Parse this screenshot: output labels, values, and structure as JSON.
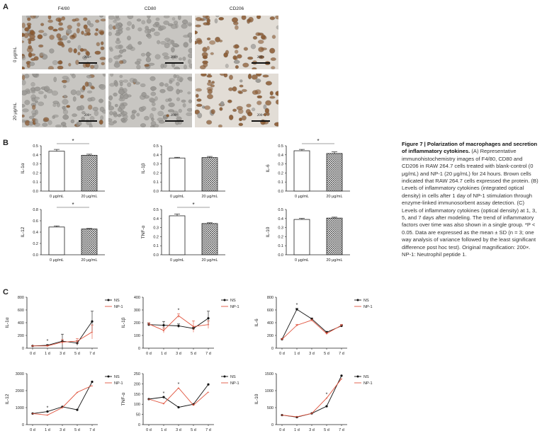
{
  "panels": {
    "a": "A",
    "b": "B",
    "c": "C"
  },
  "panel_a": {
    "columns": [
      "F4/80",
      "CD80",
      "CD206"
    ],
    "rows": [
      "0 μg/mL",
      "20 μg/mL"
    ],
    "scale_text": "200×",
    "colors": {
      "bg_gray": "#c8c6c2",
      "cell_gray": "#9a9894",
      "stain_brown": "#8a5a32"
    }
  },
  "caption": {
    "title": "Figure 7 | Polarization of macrophages and secretion of inflammatory cytokines.",
    "body": "(A) Representative immunohistochemistry images of F4/80, CD80 and CD206 in RAW 264.7 cells treated with blank-control (0 μg/mL) and NP-1 (20 μg/mL) for 24 hours. Brown cells indicated that RAW 264.7 cells expressed the protein. (B) Levels of inflammatory cytokines (integrated optical density) in cells after 1 day of NP-1 stimulation through enzyme-linked immunosorbent assay detection. (C) Levels of inflammatory cytokines (optical density) at 1, 3, 5, and 7 days after modeling. The trend of inflammatory factors over time was also shown in a single group. *P < 0.05. Data are expressed as the mean ± SD (n = 3; one way analysis of variance followed by the least significant difference post hoc test). Original magnification: 200×. NP-1: Neutrophil peptide 1."
  },
  "chart_data": [
    {
      "panel": "B",
      "type": "bar",
      "ylabel": "IL-1α",
      "categories": [
        "0 μg/mL",
        "20 μg/mL"
      ],
      "values": [
        0.44,
        0.395
      ],
      "errors": [
        0.02,
        0.012
      ],
      "ylim": [
        0,
        0.5
      ],
      "yticks": [
        "0.0",
        "0.1",
        "0.2",
        "0.3",
        "0.4",
        "0.5"
      ],
      "significance": "*"
    },
    {
      "panel": "B",
      "type": "bar",
      "ylabel": "IL-1β",
      "categories": [
        "0 μg/mL",
        "20 μg/mL"
      ],
      "values": [
        0.365,
        0.37
      ],
      "errors": [
        0.008,
        0.012
      ],
      "ylim": [
        0,
        0.5
      ],
      "yticks": [
        "0.0",
        "0.1",
        "0.2",
        "0.3",
        "0.4",
        "0.5"
      ],
      "significance": ""
    },
    {
      "panel": "B",
      "type": "bar",
      "ylabel": "IL-6",
      "categories": [
        "0 μg/mL",
        "20 μg/mL"
      ],
      "values": [
        0.445,
        0.415
      ],
      "errors": [
        0.015,
        0.018
      ],
      "ylim": [
        0,
        0.5
      ],
      "yticks": [
        "0.0",
        "0.1",
        "0.2",
        "0.3",
        "0.4",
        "0.5"
      ],
      "significance": "*"
    },
    {
      "panel": "B",
      "type": "bar",
      "ylabel": "IL-12",
      "categories": [
        "0 μg/mL",
        "20 μg/mL"
      ],
      "values": [
        0.49,
        0.455
      ],
      "errors": [
        0.02,
        0.01
      ],
      "ylim": [
        0,
        0.8
      ],
      "yticks": [
        "0.0",
        "0.2",
        "0.4",
        "0.6",
        "0.8"
      ],
      "significance": "*"
    },
    {
      "panel": "B",
      "type": "bar",
      "ylabel": "TNF-α",
      "categories": [
        "0 μg/mL",
        "20 μg/mL"
      ],
      "values": [
        0.43,
        0.345
      ],
      "errors": [
        0.02,
        0.008
      ],
      "ylim": [
        0,
        0.5
      ],
      "yticks": [
        "0.0",
        "0.1",
        "0.2",
        "0.3",
        "0.4",
        "0.5"
      ],
      "significance": "*"
    },
    {
      "panel": "B",
      "type": "bar",
      "ylabel": "IL-10",
      "categories": [
        "0 μg/mL",
        "20 μg/mL"
      ],
      "values": [
        0.39,
        0.405
      ],
      "errors": [
        0.012,
        0.01
      ],
      "ylim": [
        0,
        0.5
      ],
      "yticks": [
        "0.0",
        "0.1",
        "0.2",
        "0.3",
        "0.4",
        "0.5"
      ],
      "significance": ""
    },
    {
      "panel": "C",
      "type": "line",
      "ylabel": "IL-1α",
      "x": [
        "0 d",
        "1 d",
        "3 d",
        "5 d",
        "7 d"
      ],
      "ylim": [
        0,
        800
      ],
      "yticks": [
        "0",
        "200",
        "400",
        "600",
        "800"
      ],
      "series": [
        {
          "name": "NS",
          "values": [
            35,
            45,
            110,
            80,
            420
          ],
          "errors": [
            5,
            10,
            110,
            35,
            160
          ]
        },
        {
          "name": "NP-1",
          "values": [
            35,
            35,
            95,
            110,
            255
          ],
          "errors": [
            5,
            8,
            40,
            40,
            110
          ]
        }
      ],
      "significance_at": [
        "1 d"
      ],
      "legend": "top-right"
    },
    {
      "panel": "C",
      "type": "line",
      "ylabel": "IL-1β",
      "x": [
        "0 d",
        "1 d",
        "3 d",
        "5 d",
        "7 d"
      ],
      "ylim": [
        0,
        400
      ],
      "yticks": [
        "0",
        "100",
        "200",
        "300",
        "400"
      ],
      "series": [
        {
          "name": "NS",
          "values": [
            185,
            180,
            175,
            155,
            235
          ],
          "errors": [
            10,
            30,
            15,
            10,
            55
          ]
        },
        {
          "name": "NP-1",
          "values": [
            190,
            140,
            255,
            170,
            185
          ],
          "errors": [
            10,
            20,
            15,
            45,
            30
          ]
        }
      ],
      "significance_at": [
        "3 d"
      ],
      "legend": "top-right"
    },
    {
      "panel": "C",
      "type": "line",
      "ylabel": "IL-6",
      "x": [
        "0 d",
        "1 d",
        "3 d",
        "5 d",
        "7 d"
      ],
      "ylim": [
        0,
        800
      ],
      "yticks": [
        "0",
        "200",
        "400",
        "600",
        "800"
      ],
      "series": [
        {
          "name": "NS",
          "values": [
            140,
            610,
            460,
            250,
            350
          ],
          "errors": [
            8,
            15,
            15,
            15,
            15
          ]
        },
        {
          "name": "NP-1",
          "values": [
            140,
            360,
            440,
            230,
            360
          ],
          "errors": [
            8,
            15,
            15,
            15,
            15
          ]
        }
      ],
      "significance_at": [
        "1 d"
      ],
      "legend": "top-right"
    },
    {
      "panel": "C",
      "type": "line",
      "ylabel": "IL-12",
      "x": [
        "0 d",
        "1 d",
        "3 d",
        "5 d",
        "7 d"
      ],
      "ylim": [
        0,
        3000
      ],
      "yticks": [
        "0",
        "1000",
        "2000",
        "3000"
      ],
      "series": [
        {
          "name": "NS",
          "values": [
            650,
            770,
            1050,
            870,
            2520
          ],
          "errors": [
            0,
            0,
            0,
            0,
            0
          ]
        },
        {
          "name": "NP-1",
          "values": [
            650,
            560,
            1000,
            1900,
            2300
          ],
          "errors": [
            0,
            0,
            0,
            0,
            0
          ]
        }
      ],
      "significance_at": [
        "1 d"
      ],
      "legend": "top-right"
    },
    {
      "panel": "C",
      "type": "line",
      "ylabel": "TNF-α",
      "x": [
        "0 d",
        "1 d",
        "3 d",
        "5 d",
        "7 d"
      ],
      "ylim": [
        0,
        250
      ],
      "yticks": [
        "0",
        "50",
        "100",
        "150",
        "200",
        "250"
      ],
      "series": [
        {
          "name": "NS",
          "values": [
            125,
            135,
            85,
            100,
            197
          ],
          "errors": [
            0,
            0,
            0,
            0,
            0
          ]
        },
        {
          "name": "NP-1",
          "values": [
            125,
            103,
            180,
            95,
            160
          ],
          "errors": [
            0,
            0,
            0,
            0,
            0
          ]
        }
      ],
      "significance_at": [
        "1 d",
        "3 d"
      ],
      "legend": "top-right"
    },
    {
      "panel": "C",
      "type": "line",
      "ylabel": "IL-10",
      "x": [
        "0 d",
        "1 d",
        "3 d",
        "5 d",
        "7 d"
      ],
      "ylim": [
        0,
        1500
      ],
      "yticks": [
        "0",
        "500",
        "1000",
        "1500"
      ],
      "series": [
        {
          "name": "NS",
          "values": [
            280,
            220,
            330,
            540,
            1440
          ],
          "errors": [
            0,
            0,
            0,
            0,
            0
          ]
        },
        {
          "name": "NP-1",
          "values": [
            280,
            230,
            330,
            780,
            1350
          ],
          "errors": [
            0,
            0,
            0,
            0,
            0
          ]
        }
      ],
      "significance_at": [
        "5 d"
      ],
      "legend": "top-right"
    }
  ],
  "colors": {
    "ns": "#111111",
    "np1": "#e0533d",
    "axis": "#222222"
  }
}
